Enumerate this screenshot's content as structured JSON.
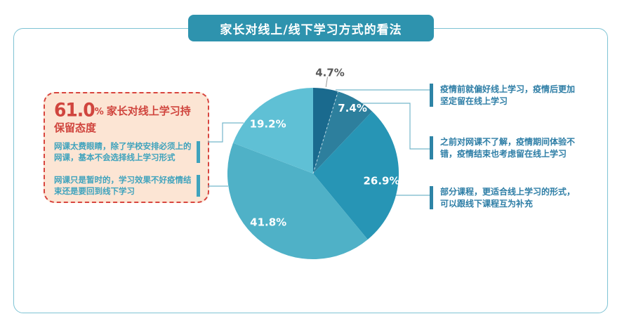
{
  "title": "家长对线上/线下学习方式的看法",
  "left_panel": {
    "headline_value": "61.0",
    "headline_unit": "%",
    "headline_text": "家长对线上学习持保留态度",
    "notes": [
      "网课太费眼睛，除了学校安排必须上的网课，基本不会选择线上学习形式",
      "网课只是暂时的，学习效果不好疫情结束还是要回到线下学习"
    ]
  },
  "annotations": [
    "疫情前就偏好线上学习，疫情后更加坚定留在线上学习",
    "之前对网课不了解，疫情期间体验不错，疫情结束也考虑留在线上学习",
    "部分课程，更适合线上学习的形式，可以跟线下课程互为补充"
  ],
  "chart_data": {
    "type": "pie",
    "title": "家长对线上/线下学习方式的看法",
    "categories": [
      "疫情前就偏好线上学习，疫情后更加坚定留在线上学习",
      "之前对网课不了解，疫情期间体验不错，疫情结束也考虑留在线上学习",
      "部分课程，更适合线上学习的形式，可以跟线下课程互为补充",
      "网课只是暂时的，学习效果不好疫情结束还是要回到线下学习",
      "网课太费眼睛，除了学校安排必须上的网课，基本不会选择线上学习形式"
    ],
    "values": [
      4.7,
      7.4,
      26.9,
      41.8,
      19.2
    ],
    "labels": [
      "4.7%",
      "7.4%",
      "26.9%",
      "41.8%",
      "19.2%"
    ],
    "colors": [
      "#1a6a8e",
      "#2d7f9d",
      "#2795b5",
      "#4fb1c7",
      "#5fc0d5"
    ],
    "start_angle_deg": 0,
    "direction": "clockwise",
    "legend": "none",
    "summary_stat": "61.0% 家长对线上学习持保留态度"
  },
  "colors": {
    "title_bg": "#2e93ae",
    "frame_border": "#7ec3d4",
    "panel_bg": "#fce5d4",
    "panel_border": "#d8453e",
    "headline_red": "#d0453e",
    "note_teal": "#3fa3bd",
    "annotation_teal": "#2e7ea6",
    "connector": "#74b6cb",
    "outside_label_gray": "#595959"
  }
}
